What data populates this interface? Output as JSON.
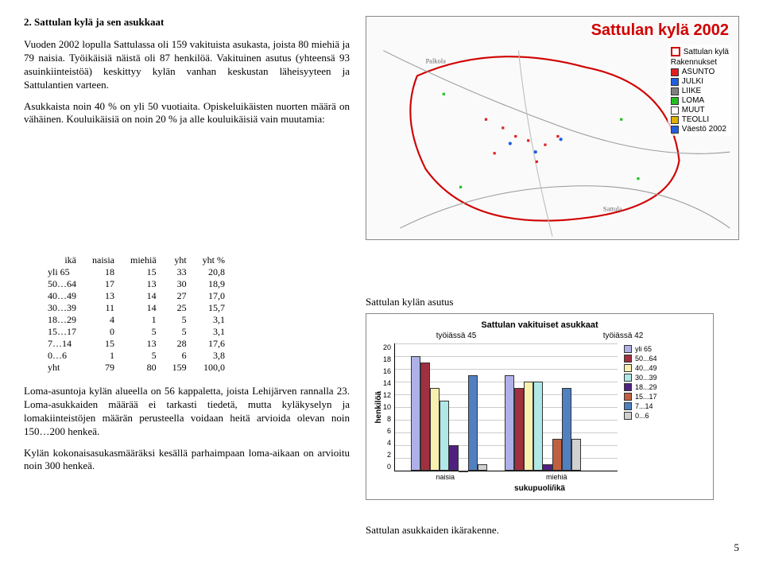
{
  "section_title": "2.  Sattulan kylä ja sen asukkaat",
  "para1": "Vuoden 2002 lopulla Sattulassa oli 159 vakituista asukasta, joista 80 miehiä ja 79 naisia. Työikäisiä näistä oli 87 henkilöä. Vakituinen asutus (yhteensä 93 asuinkiinteistöä) keskittyy kylän vanhan keskustan läheisyyteen ja Sattulantien varteen.",
  "para2": "Asukkaista noin 40 % on yli 50 vuotiaita. Opiskeluikäisten nuorten määrä on vähäinen. Kouluikäisiä on noin 20 % ja alle kouluikäisiä vain muutamia:",
  "table": {
    "headers": [
      "ikä",
      "naisia",
      "miehiä",
      "yht",
      "yht %"
    ],
    "rows": [
      [
        "yli 65",
        "18",
        "15",
        "33",
        "20,8"
      ],
      [
        "50…64",
        "17",
        "13",
        "30",
        "18,9"
      ],
      [
        "40…49",
        "13",
        "14",
        "27",
        "17,0"
      ],
      [
        "30…39",
        "11",
        "14",
        "25",
        "15,7"
      ],
      [
        "18…29",
        "4",
        "1",
        "5",
        "3,1"
      ],
      [
        "15…17",
        "0",
        "5",
        "5",
        "3,1"
      ],
      [
        "7…14",
        "15",
        "13",
        "28",
        "17,6"
      ],
      [
        "0…6",
        "1",
        "5",
        "6",
        "3,8"
      ],
      [
        "yht",
        "79",
        "80",
        "159",
        "100,0"
      ]
    ]
  },
  "para3": "Loma-asuntoja kylän alueella on 56 kappaletta, joista Lehijärven rannalla 23. Loma-asukkaiden määrää ei tarkasti tiedetä, mutta kyläkyselyn ja lomakiinteistöjen määrän perusteella voidaan heitä arvioida olevan noin 150…200 henkeä.",
  "para4": "Kylän kokonaisasukasmääräksi kesällä parhaimpaan loma-aikaan on arvioitu noin 300 henkeä.",
  "map": {
    "title": "Sattulan kylä 2002",
    "legend_title": "Rakennukset",
    "border_label": "Sattulan kylä",
    "legend": [
      {
        "label": "ASUNTO",
        "color": "#e02020"
      },
      {
        "label": "JULKI",
        "color": "#2060e0"
      },
      {
        "label": "LIIKE",
        "color": "#808080"
      },
      {
        "label": "LOMA",
        "color": "#20c020"
      },
      {
        "label": "MUUT",
        "color": "#ffffff"
      },
      {
        "label": "TEOLLI",
        "color": "#e0b000"
      },
      {
        "label": "Väestö 2002",
        "color": "#2060e0"
      }
    ]
  },
  "chart_caption": "Sattulan kylän asutus",
  "chart": {
    "title": "Sattulan vakituiset asukkaat",
    "sub_left": "työiässä 45",
    "sub_right": "työiässä 42",
    "ylabel": "henkilöä",
    "ymax": 20,
    "ytick_step": 2,
    "xcats": [
      "naisia",
      "miehiä"
    ],
    "xlabel": "sukupuoli/ikä",
    "groups": {
      "naisia": [
        18,
        17,
        13,
        11,
        4,
        0,
        15,
        1
      ],
      "miehia": [
        15,
        13,
        14,
        14,
        1,
        5,
        13,
        5
      ]
    },
    "series": [
      {
        "label": "yli 65",
        "color": "#b0b0e8"
      },
      {
        "label": "50...64",
        "color": "#a03040"
      },
      {
        "label": "40...49",
        "color": "#f8f0b0"
      },
      {
        "label": "30...39",
        "color": "#b0e8e8"
      },
      {
        "label": "18...29",
        "color": "#502080"
      },
      {
        "label": "15...17",
        "color": "#c06040"
      },
      {
        "label": "7...14",
        "color": "#5080c0"
      },
      {
        "label": "0...6",
        "color": "#d0d0d0"
      }
    ]
  },
  "bottom_caption": "Sattulan asukkaiden ikärakenne.",
  "page_num": "5"
}
